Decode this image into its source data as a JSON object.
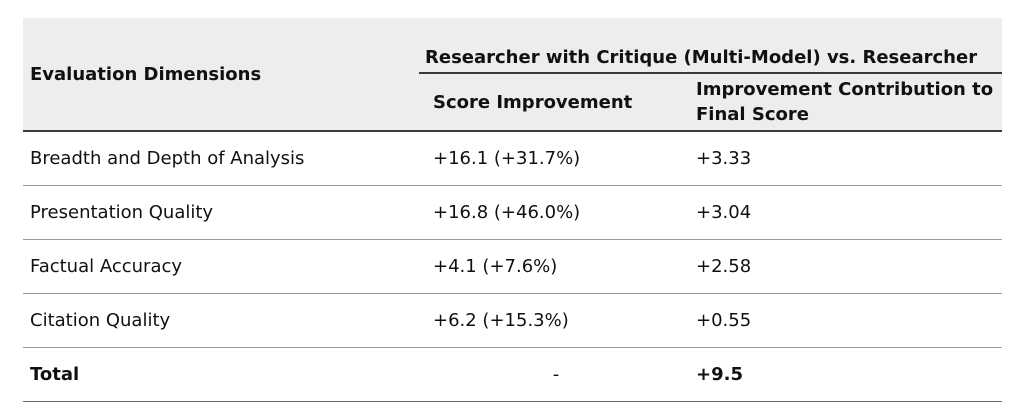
{
  "table": {
    "header": {
      "dimensions_label": "Evaluation Dimensions",
      "group_label": "Researcher with Critique (Multi-Model) vs. Researcher",
      "score_label": "Score Improvement",
      "contribution_label": "Improvement Contribution to Final Score"
    },
    "rows": [
      {
        "dimension": "Breadth and Depth of Analysis",
        "score": "+16.1 (+31.7%)",
        "contribution": "+3.33"
      },
      {
        "dimension": "Presentation Quality",
        "score": "+16.8 (+46.0%)",
        "contribution": "+3.04"
      },
      {
        "dimension": "Factual Accuracy",
        "score": "+4.1 (+7.6%)",
        "contribution": "+2.58"
      },
      {
        "dimension": "Citation Quality",
        "score": "+6.2 (+15.3%)",
        "contribution": "+0.55"
      }
    ],
    "total": {
      "label": "Total",
      "score": "-",
      "contribution": "+9.5"
    }
  }
}
